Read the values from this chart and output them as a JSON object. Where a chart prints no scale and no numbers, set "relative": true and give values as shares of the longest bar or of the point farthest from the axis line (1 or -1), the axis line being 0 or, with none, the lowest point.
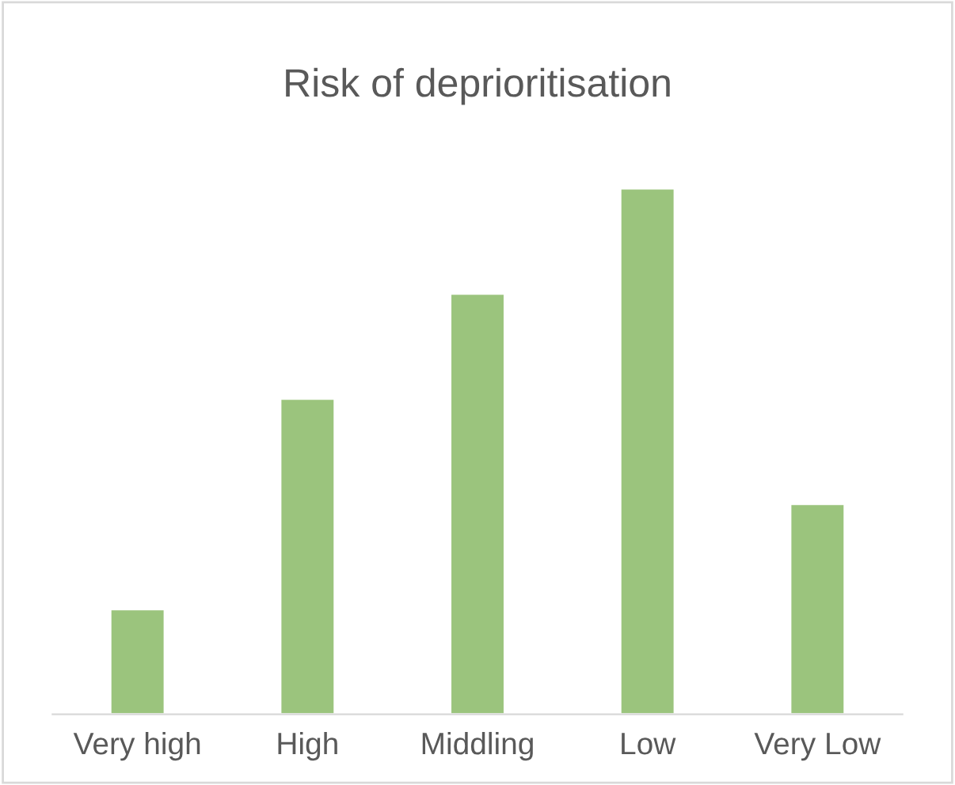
{
  "chart_data": {
    "type": "bar",
    "title": "Risk of deprioritisation",
    "categories": [
      "Very high",
      "High",
      "Middling",
      "Low",
      "Very Low"
    ],
    "values": [
      0.2,
      0.6,
      0.8,
      1,
      0.4
    ],
    "color": "#9bc47d",
    "relative": true,
    "grid": false,
    "legend": false
  }
}
